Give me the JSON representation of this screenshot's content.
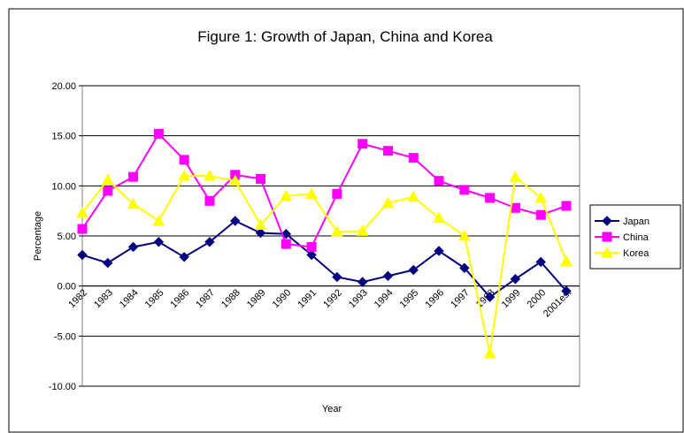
{
  "chart_data": {
    "type": "line",
    "title": "Figure 1: Growth of Japan, China and Korea",
    "x_label": "Year",
    "y_label": "Percentage",
    "categories": [
      "1982",
      "1983",
      "1984",
      "1985",
      "1986",
      "1987",
      "1988",
      "1989",
      "1990",
      "1991",
      "1992",
      "1993",
      "1994",
      "1995",
      "1996",
      "1997",
      "1998",
      "1999",
      "2000",
      "2001est"
    ],
    "series": [
      {
        "name": "Japan",
        "color": "#000080",
        "marker": "diamond",
        "values": [
          3.1,
          2.3,
          3.9,
          4.4,
          2.9,
          4.4,
          6.5,
          5.3,
          5.2,
          3.1,
          0.9,
          0.4,
          1.0,
          1.6,
          3.5,
          1.8,
          -1.1,
          0.7,
          2.4,
          -0.5
        ]
      },
      {
        "name": "China",
        "color": "#FF00FF",
        "marker": "square",
        "values": [
          5.7,
          9.5,
          10.9,
          15.2,
          12.6,
          8.5,
          11.1,
          10.7,
          4.2,
          3.9,
          9.2,
          14.2,
          13.5,
          12.8,
          10.5,
          9.6,
          8.8,
          7.8,
          7.1,
          8.0
        ]
      },
      {
        "name": "Korea",
        "color": "#FFFF00",
        "marker": "triangle",
        "values": [
          7.3,
          10.6,
          8.2,
          6.5,
          11.0,
          11.0,
          10.5,
          6.1,
          9.0,
          9.2,
          5.4,
          5.5,
          8.3,
          8.9,
          6.8,
          5.0,
          -6.7,
          10.9,
          8.8,
          2.5
        ]
      }
    ],
    "ylim": [
      -10,
      20
    ],
    "yticks": [
      {
        "value": -10,
        "label": "-10.00"
      },
      {
        "value": -5,
        "label": "-5.00"
      },
      {
        "value": 0,
        "label": "0.00"
      },
      {
        "value": 5,
        "label": "5.00"
      },
      {
        "value": 10,
        "label": "10.00"
      },
      {
        "value": 15,
        "label": "15.00"
      },
      {
        "value": 20,
        "label": "20.00"
      }
    ],
    "grid": true,
    "legend": "right"
  }
}
